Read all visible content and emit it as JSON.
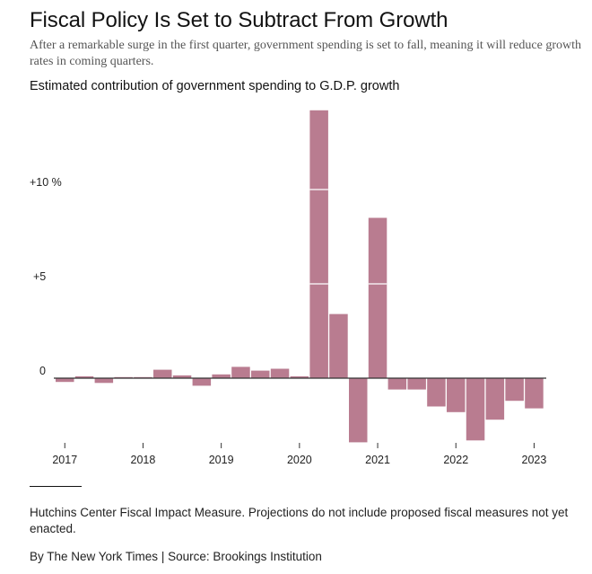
{
  "headline": "Fiscal Policy Is Set to Subtract From Growth",
  "dek": "After a remarkable surge in the first quarter, government spending is set to fall, meaning it will reduce growth rates in coming quarters.",
  "chart_title": "Estimated contribution of government spending to G.D.P. growth",
  "footnote": "Hutchins Center Fiscal Impact Measure. Projections do not include proposed fiscal measures not yet enacted.",
  "credit": "By The New York Times | Source: Brookings Institution",
  "colors": {
    "bar": "#b97c90",
    "axis": "#333333"
  },
  "chart_data": {
    "type": "bar",
    "title": "Estimated contribution of government spending to G.D.P. growth",
    "xlabel": "",
    "ylabel": "",
    "ylim": [
      -3.5,
      14.5
    ],
    "y_ticks": [
      {
        "value": 10,
        "label": "+10 %"
      },
      {
        "value": 5,
        "label": "+5"
      },
      {
        "value": 0,
        "label": "0"
      }
    ],
    "x_ticks": [
      "2017",
      "2018",
      "2019",
      "2020",
      "2021",
      "2022",
      "2023"
    ],
    "grid": false,
    "categories": [
      "2017 Q1",
      "2017 Q2",
      "2017 Q3",
      "2017 Q4",
      "2018 Q1",
      "2018 Q2",
      "2018 Q3",
      "2018 Q4",
      "2019 Q1",
      "2019 Q2",
      "2019 Q3",
      "2019 Q4",
      "2020 Q1",
      "2020 Q2",
      "2020 Q3",
      "2020 Q4",
      "2021 Q1",
      "2021 Q2",
      "2021 Q3",
      "2021 Q4",
      "2022 Q1",
      "2022 Q2",
      "2022 Q3",
      "2022 Q4",
      "2023 Q1"
    ],
    "values": [
      -0.2,
      0.1,
      -0.25,
      0.05,
      0.0,
      0.45,
      0.15,
      -0.4,
      0.2,
      0.6,
      0.4,
      0.5,
      0.1,
      14.2,
      3.4,
      -3.4,
      8.5,
      -0.6,
      -0.6,
      -1.5,
      -1.8,
      -3.3,
      -2.2,
      -1.2,
      -1.6
    ]
  }
}
